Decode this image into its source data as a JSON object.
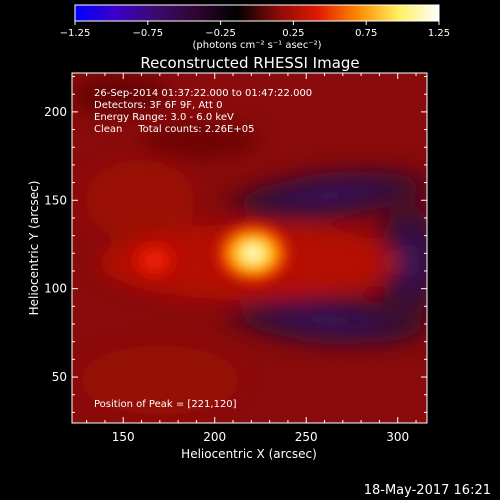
{
  "chart_data": {
    "type": "heatmap",
    "title": "Reconstructed RHESSI Image",
    "xlabel": "Heliocentric X (arcsec)",
    "ylabel": "Heliocentric Y (arcsec)",
    "xlim": [
      122,
      316
    ],
    "ylim": [
      24,
      222
    ],
    "x_ticks": [
      150,
      200,
      250,
      300
    ],
    "y_ticks": [
      50,
      100,
      150,
      200
    ],
    "x_tick_labels": [
      "150",
      "200",
      "250",
      "300"
    ],
    "y_tick_labels": [
      "50",
      "100",
      "150",
      "200"
    ],
    "colorbar": {
      "range": [
        -1.25,
        1.25
      ],
      "ticks": [
        -1.25,
        -0.75,
        -0.25,
        0.25,
        0.75,
        1.25
      ],
      "tick_labels": [
        "−1.25",
        "−0.75",
        "−0.25",
        "0.25",
        "0.75",
        "1.25"
      ],
      "units": "(photons cm⁻² s⁻¹ asec⁻²)",
      "colormap": [
        "#0000ff",
        "#3a00c8",
        "#3c0a6e",
        "#300530",
        "#000000",
        "#8a0a0a",
        "#e01a00",
        "#ff8a00",
        "#fff060",
        "#ffffff"
      ]
    },
    "info_lines": [
      "26-Sep-2014 01:37:22.000 to 01:47:22.000",
      "Detectors: 3F 6F 9F, Att 0",
      "Energy Range: 3.0 - 6.0 keV",
      "Clean     Total counts: 2.26E+05"
    ],
    "peak_label": "Position of Peak = [221,120]",
    "peak": [
      221,
      120
    ],
    "sources": [
      {
        "x": 221,
        "y": 120,
        "value": 1.25
      },
      {
        "x": 167,
        "y": 116,
        "value": 0.45
      }
    ]
  },
  "footer": {
    "timestamp": "18-May-2017 16:21"
  }
}
